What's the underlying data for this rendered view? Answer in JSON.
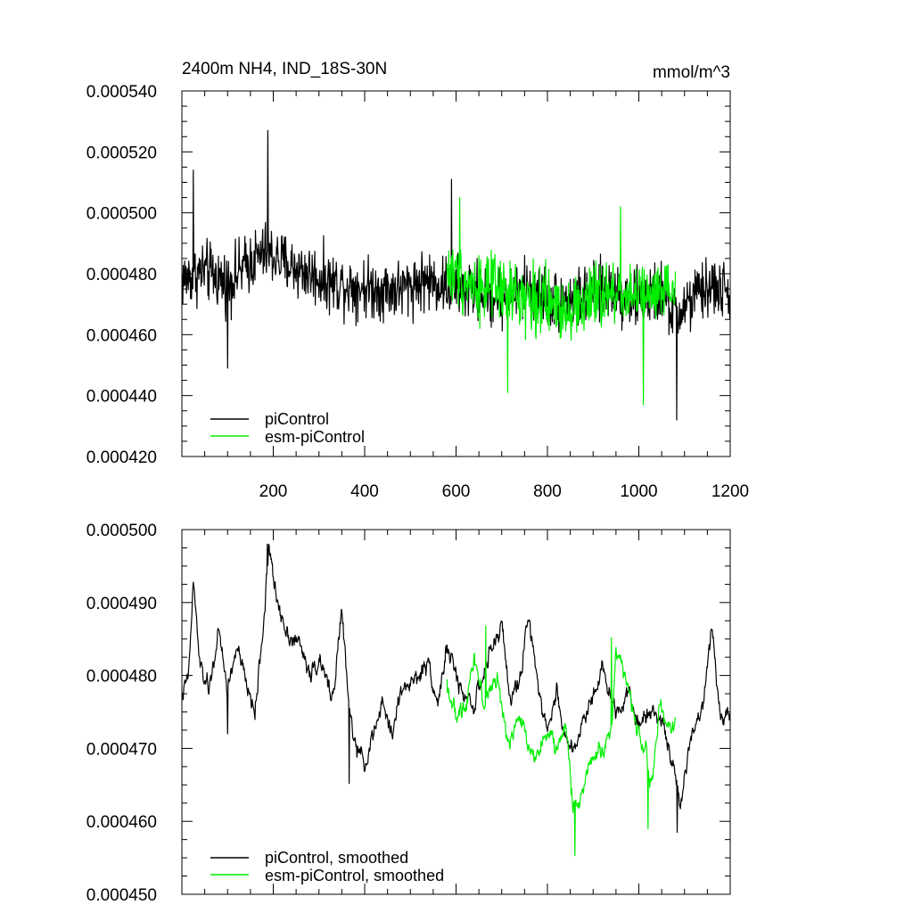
{
  "chart_data": [
    {
      "type": "line",
      "title": "2400m NH4, IND_18S-30N",
      "units": "mmol/m^3",
      "xlim": [
        0,
        1200
      ],
      "ylim": [
        0.00042,
        0.00054
      ],
      "xticks": [
        200,
        400,
        600,
        800,
        1000,
        1200
      ],
      "xtick_labels": [
        "200",
        "400",
        "600",
        "800",
        "1000",
        "1200"
      ],
      "yticks": [
        0.00042,
        0.00044,
        0.00046,
        0.00048,
        0.0005,
        0.00052,
        0.00054
      ],
      "ytick_labels": [
        "0.000420",
        "0.000440",
        "0.000460",
        "0.000480",
        "0.000500",
        "0.000520",
        "0.000540"
      ],
      "legend_position": "bottom-left",
      "series": [
        {
          "name": "piControl",
          "color": "#000000",
          "x_range": [
            0,
            1200
          ],
          "anchors": [
            [
              0,
              0.000478
            ],
            [
              50,
              0.000481
            ],
            [
              100,
              0.000477
            ],
            [
              150,
              0.000484
            ],
            [
              185,
              0.000487
            ],
            [
              230,
              0.000483
            ],
            [
              280,
              0.00048
            ],
            [
              330,
              0.000477
            ],
            [
              380,
              0.000476
            ],
            [
              430,
              0.000475
            ],
            [
              480,
              0.000475
            ],
            [
              530,
              0.000478
            ],
            [
              580,
              0.000476
            ],
            [
              650,
              0.000474
            ],
            [
              700,
              0.000472
            ],
            [
              760,
              0.000475
            ],
            [
              820,
              0.000471
            ],
            [
              880,
              0.000472
            ],
            [
              940,
              0.000475
            ],
            [
              1000,
              0.000471
            ],
            [
              1050,
              0.000474
            ],
            [
              1080,
              0.000466
            ],
            [
              1120,
              0.000472
            ],
            [
              1160,
              0.000476
            ],
            [
              1200,
              0.000473
            ]
          ],
          "noise": 8.5e-06,
          "min": 0.000432,
          "max": 0.000527,
          "extremes": [
            [
              188,
              0.000527
            ],
            [
              1083,
              0.000432
            ],
            [
              25,
              0.000514
            ],
            [
              590,
              0.000511
            ],
            [
              100,
              0.000449
            ]
          ]
        },
        {
          "name": "esm-piControl",
          "color": "#00ee00",
          "x_range": [
            580,
            1080
          ],
          "anchors": [
            [
              580,
              0.000481
            ],
            [
              630,
              0.000477
            ],
            [
              680,
              0.000475
            ],
            [
              740,
              0.000473
            ],
            [
              800,
              0.00047
            ],
            [
              860,
              0.000469
            ],
            [
              920,
              0.000473
            ],
            [
              980,
              0.000474
            ],
            [
              1030,
              0.000472
            ],
            [
              1080,
              0.000474
            ]
          ],
          "noise": 9.5e-06,
          "min": 0.000437,
          "max": 0.000505,
          "extremes": [
            [
              1010,
              0.000437
            ],
            [
              608,
              0.000505
            ],
            [
              960,
              0.000502
            ],
            [
              713,
              0.000441
            ]
          ]
        }
      ]
    },
    {
      "type": "line",
      "xlim": [
        0,
        1200
      ],
      "ylim": [
        0.00045,
        0.0005
      ],
      "xticks": [
        200,
        400,
        600,
        800,
        1000,
        1200
      ],
      "yticks": [
        0.00045,
        0.00046,
        0.00047,
        0.00048,
        0.00049,
        0.0005
      ],
      "ytick_labels": [
        "0.000450",
        "0.000460",
        "0.000470",
        "0.000480",
        "0.000490",
        "0.000500"
      ],
      "legend_position": "bottom-left",
      "series": [
        {
          "name": "piControl, smoothed",
          "color": "#000000",
          "x_range": [
            0,
            1200
          ],
          "anchors": [
            [
              0,
              0.000477
            ],
            [
              15,
              0.00048
            ],
            [
              25,
              0.000493
            ],
            [
              40,
              0.000481
            ],
            [
              60,
              0.000478
            ],
            [
              80,
              0.000486
            ],
            [
              100,
              0.000478
            ],
            [
              120,
              0.000484
            ],
            [
              140,
              0.000479
            ],
            [
              160,
              0.000475
            ],
            [
              180,
              0.000488
            ],
            [
              190,
              0.000498
            ],
            [
              205,
              0.000491
            ],
            [
              230,
              0.000486
            ],
            [
              260,
              0.000484
            ],
            [
              280,
              0.00048
            ],
            [
              300,
              0.000482
            ],
            [
              330,
              0.000477
            ],
            [
              350,
              0.000489
            ],
            [
              365,
              0.000476
            ],
            [
              380,
              0.00047
            ],
            [
              400,
              0.000468
            ],
            [
              420,
              0.000472
            ],
            [
              440,
              0.000476
            ],
            [
              460,
              0.000472
            ],
            [
              480,
              0.000478
            ],
            [
              500,
              0.000479
            ],
            [
              520,
              0.00048
            ],
            [
              540,
              0.000482
            ],
            [
              560,
              0.000476
            ],
            [
              580,
              0.000484
            ],
            [
              610,
              0.000478
            ],
            [
              640,
              0.000476
            ],
            [
              670,
              0.000482
            ],
            [
              700,
              0.000487
            ],
            [
              720,
              0.000476
            ],
            [
              740,
              0.00048
            ],
            [
              760,
              0.000488
            ],
            [
              780,
              0.000479
            ],
            [
              800,
              0.000472
            ],
            [
              820,
              0.000478
            ],
            [
              840,
              0.000471
            ],
            [
              860,
              0.00047
            ],
            [
              890,
              0.000476
            ],
            [
              920,
              0.000481
            ],
            [
              950,
              0.000475
            ],
            [
              980,
              0.000478
            ],
            [
              1000,
              0.000473
            ],
            [
              1030,
              0.000476
            ],
            [
              1060,
              0.000472
            ],
            [
              1080,
              0.000466
            ],
            [
              1090,
              0.000461
            ],
            [
              1110,
              0.000471
            ],
            [
              1140,
              0.000476
            ],
            [
              1160,
              0.000487
            ],
            [
              1180,
              0.000474
            ],
            [
              1200,
              0.000475
            ]
          ],
          "noise": 2.2e-06,
          "min": 0.000458,
          "max": 0.000498,
          "extremes": [
            [
              187,
              0.000498
            ],
            [
              1084,
              0.0004585
            ],
            [
              366,
              0.0004652
            ],
            [
              100,
              0.000472
            ]
          ]
        },
        {
          "name": "esm-piControl, smoothed",
          "color": "#00ee00",
          "x_range": [
            580,
            1080
          ],
          "anchors": [
            [
              580,
              0.000479
            ],
            [
              600,
              0.000474
            ],
            [
              620,
              0.000476
            ],
            [
              640,
              0.000483
            ],
            [
              660,
              0.000476
            ],
            [
              690,
              0.00048
            ],
            [
              710,
              0.000471
            ],
            [
              740,
              0.000474
            ],
            [
              770,
              0.000469
            ],
            [
              800,
              0.000472
            ],
            [
              820,
              0.00047
            ],
            [
              840,
              0.000473
            ],
            [
              855,
              0.000463
            ],
            [
              870,
              0.000462
            ],
            [
              890,
              0.000468
            ],
            [
              920,
              0.00047
            ],
            [
              940,
              0.000472
            ],
            [
              950,
              0.000484
            ],
            [
              970,
              0.00048
            ],
            [
              990,
              0.000474
            ],
            [
              1010,
              0.000471
            ],
            [
              1030,
              0.000465
            ],
            [
              1045,
              0.000476
            ],
            [
              1060,
              0.000473
            ],
            [
              1080,
              0.000474
            ]
          ],
          "noise": 2.2e-06,
          "min": 0.000455,
          "max": 0.000487,
          "extremes": [
            [
              860,
              0.0004553
            ],
            [
              665,
              0.0004868
            ],
            [
              940,
              0.0004852
            ],
            [
              1020,
              0.000459
            ]
          ]
        }
      ]
    }
  ]
}
